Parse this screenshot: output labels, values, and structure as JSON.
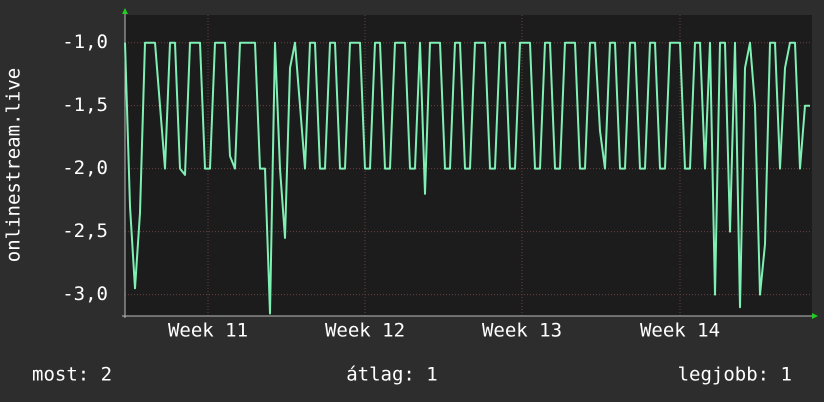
{
  "chart_data": {
    "type": "line",
    "ylabel": "onlinestream.live",
    "x": [
      0,
      1,
      2,
      3,
      4,
      5,
      6,
      7,
      8,
      9,
      10,
      11,
      12,
      13,
      14,
      15,
      16,
      17,
      18,
      19,
      20,
      21,
      22,
      23,
      24,
      25,
      26,
      27,
      28,
      29,
      30,
      31,
      32,
      33,
      34,
      35,
      36,
      37,
      38,
      39,
      40,
      41,
      42,
      43,
      44,
      45,
      46,
      47,
      48,
      49,
      50,
      51,
      52,
      53,
      54,
      55,
      56,
      57,
      58,
      59,
      60,
      61,
      62,
      63,
      64,
      65,
      66,
      67,
      68,
      69,
      70,
      71,
      72,
      73,
      74,
      75,
      76,
      77,
      78,
      79,
      80,
      81,
      82,
      83,
      84,
      85,
      86,
      87,
      88,
      89,
      90,
      91,
      92,
      93,
      94,
      95,
      96,
      97,
      98,
      99,
      100,
      101,
      102,
      103,
      104,
      105,
      106,
      107,
      108,
      109,
      110,
      111,
      112,
      113,
      114,
      115,
      116,
      117,
      118,
      119,
      120,
      121,
      122,
      123,
      124,
      125,
      126,
      127,
      128,
      129,
      130,
      131,
      132,
      133,
      134,
      135,
      136,
      137
    ],
    "series": [
      {
        "color": "#7ff0b4",
        "values": [
          -1,
          -2.3,
          -2.95,
          -2.35,
          -1,
          -1,
          -1,
          -1.5,
          -2,
          -1,
          -1,
          -2,
          -2.05,
          -1,
          -1,
          -1,
          -2,
          -2,
          -1,
          -1,
          -1,
          -1.9,
          -2,
          -1,
          -1,
          -1,
          -1,
          -2,
          -2,
          -3.15,
          -1,
          -2,
          -2.55,
          -1.2,
          -1,
          -1.5,
          -2,
          -1,
          -1,
          -2,
          -2,
          -1,
          -1,
          -2,
          -2,
          -1,
          -1,
          -1,
          -2,
          -2,
          -1,
          -1,
          -2,
          -2,
          -1,
          -1,
          -1,
          -2,
          -2,
          -1,
          -2.2,
          -1,
          -1,
          -1,
          -2,
          -2,
          -1,
          -1,
          -2,
          -2,
          -1,
          -1,
          -1,
          -2,
          -2,
          -1,
          -1,
          -2,
          -2,
          -1,
          -1,
          -1,
          -2,
          -2,
          -1,
          -1,
          -2,
          -2,
          -1,
          -1,
          -1,
          -2,
          -2,
          -1,
          -1,
          -1.7,
          -2,
          -1,
          -1,
          -2,
          -2,
          -1,
          -1,
          -2,
          -2,
          -1,
          -1,
          -2,
          -2,
          -1,
          -1,
          -1,
          -2,
          -2,
          -1,
          -1,
          -2,
          -1,
          -3.0,
          -1,
          -1,
          -2.5,
          -1,
          -3.1,
          -1.2,
          -1,
          -1.5,
          -3.0,
          -2.6,
          -1,
          -1,
          -2,
          -1.2,
          -1,
          -1,
          -2,
          -1.5,
          -1.5
        ]
      }
    ],
    "xlim": [
      0,
      137.4
    ],
    "xticks": [
      {
        "value": 16.6,
        "label": "Week 11"
      },
      {
        "value": 48,
        "label": "Week 12"
      },
      {
        "value": 79.4,
        "label": "Week 13"
      },
      {
        "value": 111,
        "label": "Week 14"
      }
    ],
    "ylim": [
      -3.17,
      -0.78
    ],
    "yticks": [
      {
        "value": -1,
        "label": "-1,0"
      },
      {
        "value": -1.5,
        "label": "-1,5"
      },
      {
        "value": -2,
        "label": "-2,0"
      },
      {
        "value": -2.5,
        "label": "-2,5"
      },
      {
        "value": -3,
        "label": "-3,0"
      }
    ],
    "grid": true,
    "stats": [
      "most: 2",
      "átlag: 1",
      "legjobb: 1"
    ]
  }
}
